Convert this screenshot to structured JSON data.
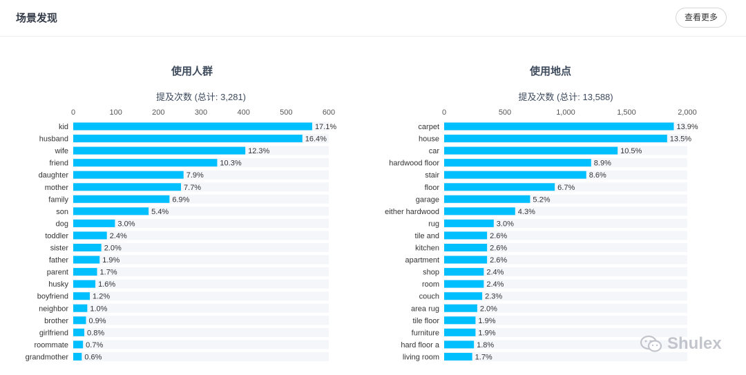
{
  "header": {
    "title": "场景发现",
    "more_label": "查看更多"
  },
  "watermark": {
    "text": "Shulex"
  },
  "colors": {
    "bar": "#00bfff",
    "row_bg": "#f4f6fa",
    "text": "#333333",
    "axis_text": "#555555"
  },
  "chart_data": [
    {
      "type": "bar",
      "orientation": "horizontal",
      "title": "使用人群",
      "xlabel": "提及次数 (总计: 3,281)",
      "total": 3281,
      "xlim": [
        0,
        600
      ],
      "ticks": [
        "0",
        "100",
        "200",
        "300",
        "400",
        "500",
        "600"
      ],
      "tick_values": [
        0,
        100,
        200,
        300,
        400,
        500,
        600
      ],
      "categories": [
        "kid",
        "husband",
        "wife",
        "friend",
        "daughter",
        "mother",
        "family",
        "son",
        "dog",
        "toddler",
        "sister",
        "father",
        "parent",
        "husky",
        "boyfriend",
        "neighbor",
        "brother",
        "girlfriend",
        "roommate",
        "grandmother"
      ],
      "labels": [
        "17.1%",
        "16.4%",
        "12.3%",
        "10.3%",
        "7.9%",
        "7.7%",
        "6.9%",
        "5.4%",
        "3.0%",
        "2.4%",
        "2.0%",
        "1.9%",
        "1.7%",
        "1.6%",
        "1.2%",
        "1.0%",
        "0.9%",
        "0.8%",
        "0.7%",
        "0.6%"
      ],
      "values": [
        561,
        538,
        404,
        338,
        259,
        253,
        226,
        177,
        98,
        79,
        66,
        62,
        56,
        52,
        39,
        33,
        30,
        26,
        23,
        20
      ]
    },
    {
      "type": "bar",
      "orientation": "horizontal",
      "title": "使用地点",
      "xlabel": "提及次数 (总计: 13,588)",
      "total": 13588,
      "xlim": [
        0,
        2000
      ],
      "ticks": [
        "0",
        "500",
        "1,000",
        "1,500",
        "2,000"
      ],
      "tick_values": [
        0,
        500,
        1000,
        1500,
        2000
      ],
      "categories": [
        "carpet",
        "house",
        "car",
        "hardwood floor",
        "stair",
        "floor",
        "garage",
        "either hardwood",
        "rug",
        "tile and",
        "kitchen",
        "apartment",
        "shop",
        "room",
        "couch",
        "area rug",
        "tile floor",
        "furniture",
        "hard floor a",
        "living room"
      ],
      "labels": [
        "13.9%",
        "13.5%",
        "10.5%",
        "8.9%",
        "8.6%",
        "6.7%",
        "5.2%",
        "4.3%",
        "3.0%",
        "2.6%",
        "2.6%",
        "2.6%",
        "2.4%",
        "2.4%",
        "2.3%",
        "2.0%",
        "1.9%",
        "1.9%",
        "1.8%",
        "1.7%"
      ],
      "values": [
        1889,
        1834,
        1427,
        1209,
        1169,
        910,
        707,
        584,
        408,
        353,
        353,
        353,
        326,
        326,
        313,
        272,
        258,
        258,
        245,
        231
      ]
    }
  ]
}
